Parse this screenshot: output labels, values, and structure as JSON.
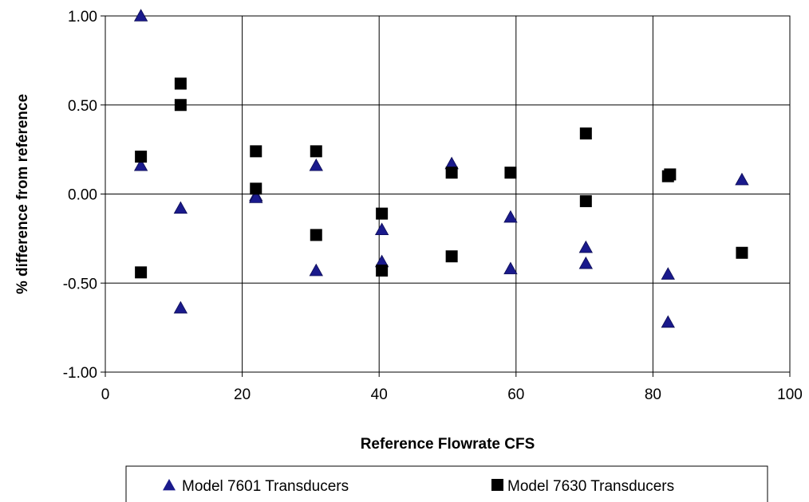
{
  "chart_data": {
    "type": "scatter",
    "xlabel": "Reference Flowrate CFS",
    "ylabel": "% difference from reference",
    "xlim": [
      0,
      100
    ],
    "ylim": [
      -1.0,
      1.0
    ],
    "xticks": [
      0,
      20,
      40,
      60,
      80,
      100
    ],
    "yticks": [
      -1.0,
      -0.5,
      0.0,
      0.5,
      1.0
    ],
    "xtick_labels": [
      "0",
      "20",
      "40",
      "60",
      "80",
      "100"
    ],
    "ytick_labels": [
      "-1.00",
      "-0.50",
      "0.00",
      "0.50",
      "1.00"
    ],
    "grid": true,
    "legend_position": "bottom",
    "series": [
      {
        "name": "Model 7601 Transducers",
        "marker": "triangle",
        "color": "#1a1a8c",
        "points": [
          [
            5.2,
            1.0
          ],
          [
            5.2,
            0.16
          ],
          [
            11.0,
            -0.08
          ],
          [
            11.0,
            -0.64
          ],
          [
            22.0,
            -0.01
          ],
          [
            22.0,
            -0.02
          ],
          [
            30.8,
            0.16
          ],
          [
            30.8,
            -0.43
          ],
          [
            40.4,
            -0.2
          ],
          [
            40.4,
            -0.38
          ],
          [
            50.6,
            0.17
          ],
          [
            59.2,
            -0.13
          ],
          [
            59.2,
            -0.42
          ],
          [
            70.2,
            -0.3
          ],
          [
            70.2,
            -0.39
          ],
          [
            82.2,
            -0.45
          ],
          [
            82.2,
            -0.72
          ],
          [
            93.0,
            0.08
          ]
        ]
      },
      {
        "name": "Model 7630 Transducers",
        "marker": "square",
        "color": "#000000",
        "points": [
          [
            5.2,
            0.21
          ],
          [
            5.2,
            -0.44
          ],
          [
            11.0,
            0.62
          ],
          [
            11.0,
            0.5
          ],
          [
            22.0,
            0.24
          ],
          [
            22.0,
            0.03
          ],
          [
            30.8,
            0.24
          ],
          [
            30.8,
            -0.23
          ],
          [
            40.4,
            -0.11
          ],
          [
            40.4,
            -0.43
          ],
          [
            50.6,
            0.12
          ],
          [
            50.6,
            -0.35
          ],
          [
            59.2,
            0.12
          ],
          [
            70.2,
            0.34
          ],
          [
            70.2,
            -0.04
          ],
          [
            82.2,
            0.1
          ],
          [
            82.5,
            0.11
          ],
          [
            93.0,
            -0.33
          ]
        ]
      }
    ]
  }
}
